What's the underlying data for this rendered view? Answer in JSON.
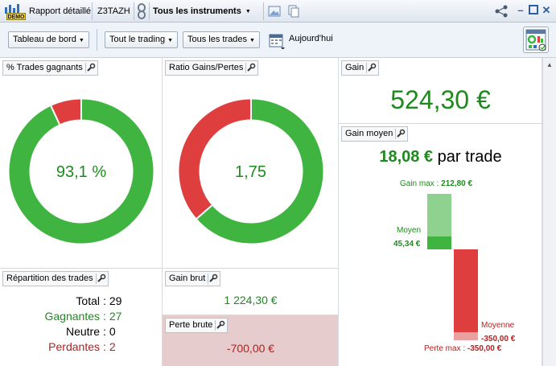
{
  "titlebar": {
    "demo_badge": "DEMO",
    "report": "Rapport détaillé",
    "account": "Z3TAZH",
    "instruments": "Tous les instruments"
  },
  "toolbar": {
    "dashboard": "Tableau de bord",
    "trading": "Tout le trading",
    "trades": "Tous les trades",
    "date": "Aujourd'hui"
  },
  "panels": {
    "win_pct": {
      "title": "% Trades gagnants",
      "value": "93,1 %",
      "fraction": 0.931
    },
    "ratio": {
      "title": "Ratio Gains/Pertes",
      "value": "1,75",
      "gain_fraction": 0.636
    },
    "gain": {
      "title": "Gain",
      "value": "524,30 €"
    },
    "gain_moyen": {
      "title": "Gain moyen",
      "headline_value": "18,08 €",
      "headline_suffix": " par trade",
      "gain_max_label": "Gain max : ",
      "gain_max_value": "212,80 €",
      "moyen_label": "Moyen",
      "moyen_value": "45,34 €",
      "moyenne_label": "Moyenne",
      "moyenne_value": "-350,00 €",
      "perte_max_label": "Perte max : ",
      "perte_max_value": "-350,00 €"
    },
    "repartition": {
      "title": "Répartition des trades",
      "rows": [
        {
          "label": "Total",
          "value": "29"
        },
        {
          "label": "Gagnantes",
          "value": "27"
        },
        {
          "label": "Neutre",
          "value": "0"
        },
        {
          "label": "Perdantes",
          "value": "2"
        }
      ]
    },
    "gain_brut": {
      "title": "Gain brut",
      "value": "1 224,30 €"
    },
    "perte_brute": {
      "title": "Perte brute",
      "value": "-700,00 €"
    }
  },
  "colors": {
    "green": "#40b440",
    "red": "#df3e3e",
    "pale_green": "#8fd18f",
    "pale_red": "#e9a0a0"
  }
}
